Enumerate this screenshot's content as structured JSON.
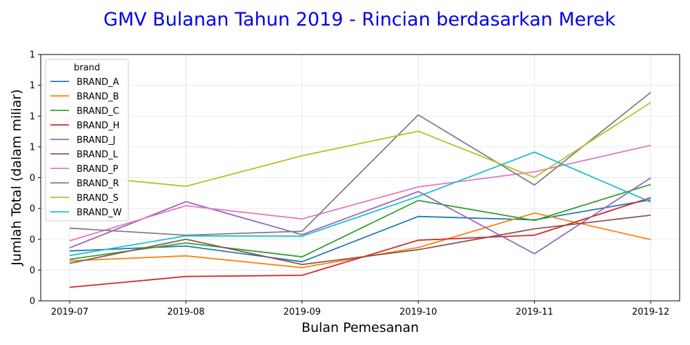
{
  "chart_data": {
    "type": "line",
    "title": "GMV Bulanan Tahun 2019 - Rincian berdasarkan Merek",
    "title_color": "#0000ee",
    "xlabel": "Bulan Pemesanan",
    "ylabel": "Jumlah Total (dalam miliar)",
    "categories": [
      "2019-07",
      "2019-08",
      "2019-09",
      "2019-10",
      "2019-11",
      "2019-12"
    ],
    "ylim": [
      0.0,
      0.8
    ],
    "y_tick_values": [
      0.0,
      0.1,
      0.2,
      0.3,
      0.4,
      0.5,
      0.6,
      0.7,
      0.8
    ],
    "y_tick_labels": [
      "0",
      "0",
      "0",
      "0",
      "0",
      "1",
      "1",
      "1",
      "1"
    ],
    "grid": true,
    "legend_title": "brand",
    "legend_position": "upper-left",
    "series": [
      {
        "name": "BRAND_A",
        "color": "#1f77b4",
        "values": [
          0.162,
          0.178,
          0.127,
          0.274,
          0.263,
          0.328
        ]
      },
      {
        "name": "BRAND_B",
        "color": "#ff7f0e",
        "values": [
          0.13,
          0.146,
          0.108,
          0.173,
          0.285,
          0.199
        ]
      },
      {
        "name": "BRAND_C",
        "color": "#2ca02c",
        "values": [
          0.135,
          0.188,
          0.143,
          0.326,
          0.261,
          0.378
        ]
      },
      {
        "name": "BRAND_H",
        "color": "#d62728",
        "values": [
          0.044,
          0.079,
          0.083,
          0.197,
          0.213,
          0.335
        ]
      },
      {
        "name": "BRAND_J",
        "color": "#9467bd",
        "values": [
          0.172,
          0.322,
          0.215,
          0.355,
          0.153,
          0.399
        ]
      },
      {
        "name": "BRAND_L",
        "color": "#8c564b",
        "values": [
          0.122,
          0.2,
          0.118,
          0.166,
          0.234,
          0.278
        ]
      },
      {
        "name": "BRAND_P",
        "color": "#e377c2",
        "values": [
          0.195,
          0.309,
          0.266,
          0.37,
          0.419,
          0.505
        ]
      },
      {
        "name": "BRAND_R",
        "color": "#7f7f7f",
        "values": [
          0.236,
          0.213,
          0.226,
          0.604,
          0.376,
          0.677
        ]
      },
      {
        "name": "BRAND_S",
        "color": "#bcbd22",
        "values": [
          0.409,
          0.372,
          0.471,
          0.551,
          0.401,
          0.644
        ]
      },
      {
        "name": "BRAND_W",
        "color": "#17becf",
        "values": [
          0.147,
          0.211,
          0.21,
          0.339,
          0.483,
          0.321
        ]
      }
    ]
  }
}
